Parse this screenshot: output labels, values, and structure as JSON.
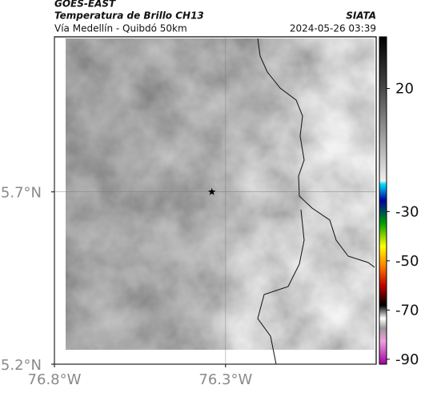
{
  "header": {
    "title": "GOES-EAST",
    "subtitle": "Temperatura de Brillo CH13",
    "source": "SIATA",
    "route": "Vía Medellín - Quibdó 50km",
    "datetime": "2024-05-26 03:39"
  },
  "map": {
    "xlim": [
      -76.8,
      -75.86
    ],
    "ylim": [
      5.2,
      6.15
    ],
    "xticks": [
      {
        "value": -76.8,
        "label": "76.8°W"
      },
      {
        "value": -76.3,
        "label": "76.3°W"
      }
    ],
    "yticks": [
      {
        "value": 5.2,
        "label": "5.2°N"
      },
      {
        "value": 5.7,
        "label": "5.7°N"
      }
    ],
    "marker": {
      "lon": -76.34,
      "lat": 5.7
    }
  },
  "colorbar": {
    "lim": [
      -92,
      41
    ],
    "ticks": [
      20,
      -30,
      -50,
      -70,
      -90
    ]
  }
}
